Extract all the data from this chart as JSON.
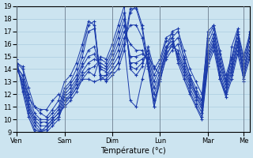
{
  "xlabel": "Température (°c)",
  "background_color": "#cce4f0",
  "grid_color": "#aacce0",
  "line_color": "#1a3aaa",
  "ylim": [
    9,
    19
  ],
  "yticks": [
    9,
    10,
    11,
    12,
    13,
    14,
    15,
    16,
    17,
    18,
    19
  ],
  "day_labels": [
    "Ven",
    "Sam",
    "Dim",
    "Lun",
    "Mar",
    "Me"
  ],
  "day_x": [
    0,
    8,
    16,
    24,
    32,
    38
  ],
  "n_points": 40,
  "series": [
    [
      14.5,
      14.2,
      12.5,
      11.0,
      10.5,
      10.2,
      10.8,
      11.5,
      13.0,
      13.5,
      14.5,
      16.0,
      17.8,
      17.5,
      13.5,
      13.0,
      13.5,
      14.0,
      15.5,
      18.5,
      19.0,
      17.5,
      14.5,
      11.0,
      13.5,
      15.5,
      16.5,
      17.0,
      15.5,
      14.0,
      13.0,
      12.0,
      16.5,
      17.5,
      15.5,
      13.5,
      15.0,
      17.0,
      15.0,
      16.8
    ],
    [
      14.5,
      14.0,
      12.0,
      10.5,
      10.0,
      10.0,
      10.5,
      11.0,
      12.5,
      13.0,
      14.0,
      15.5,
      17.5,
      17.8,
      13.2,
      13.2,
      13.8,
      14.5,
      16.0,
      18.8,
      18.8,
      17.2,
      14.0,
      11.0,
      13.0,
      15.0,
      16.0,
      16.5,
      15.0,
      13.5,
      12.5,
      11.5,
      16.0,
      17.2,
      15.2,
      13.2,
      14.8,
      16.8,
      14.8,
      16.5
    ],
    [
      14.2,
      13.5,
      11.5,
      10.2,
      9.8,
      9.8,
      10.2,
      10.8,
      12.2,
      12.8,
      13.5,
      15.0,
      17.0,
      17.2,
      13.5,
      13.5,
      14.2,
      15.0,
      16.5,
      17.5,
      17.5,
      16.5,
      14.2,
      11.5,
      13.2,
      14.8,
      15.5,
      16.0,
      14.5,
      13.2,
      12.2,
      11.2,
      15.5,
      16.8,
      14.8,
      13.0,
      14.5,
      16.5,
      14.5,
      16.2
    ],
    [
      14.0,
      13.2,
      11.2,
      10.0,
      9.5,
      9.5,
      10.0,
      10.5,
      12.0,
      12.5,
      13.2,
      14.5,
      15.5,
      15.8,
      14.0,
      13.8,
      14.5,
      15.5,
      17.0,
      16.0,
      15.5,
      15.5,
      14.5,
      12.0,
      13.5,
      15.2,
      15.8,
      15.5,
      14.2,
      13.0,
      12.0,
      11.0,
      15.2,
      16.5,
      14.5,
      12.8,
      14.2,
      16.2,
      14.2,
      15.8
    ],
    [
      14.0,
      13.0,
      11.0,
      9.8,
      9.2,
      9.2,
      9.8,
      10.2,
      11.8,
      12.2,
      13.0,
      14.2,
      15.0,
      15.2,
      14.2,
      14.0,
      14.8,
      16.0,
      17.5,
      15.0,
      15.0,
      15.2,
      14.8,
      12.5,
      13.8,
      15.5,
      16.0,
      15.2,
      14.0,
      12.8,
      11.8,
      10.8,
      15.0,
      16.2,
      14.2,
      12.5,
      14.0,
      16.0,
      14.0,
      15.5
    ],
    [
      14.2,
      12.8,
      10.8,
      9.5,
      9.0,
      9.0,
      9.5,
      10.0,
      11.5,
      12.0,
      12.8,
      13.8,
      14.5,
      14.8,
      14.5,
      14.2,
      15.2,
      16.5,
      18.0,
      14.5,
      14.5,
      14.8,
      15.2,
      13.0,
      14.2,
      15.8,
      16.2,
      15.0,
      13.8,
      12.5,
      11.5,
      10.5,
      14.8,
      16.0,
      13.8,
      12.2,
      13.8,
      15.8,
      13.8,
      15.2
    ],
    [
      14.5,
      12.5,
      10.5,
      9.2,
      9.0,
      9.2,
      9.8,
      10.2,
      11.2,
      11.8,
      12.5,
      13.5,
      14.0,
      14.2,
      14.8,
      14.5,
      15.5,
      17.0,
      18.5,
      14.2,
      14.0,
      14.5,
      15.5,
      13.5,
      14.5,
      16.2,
      16.5,
      14.8,
      13.5,
      12.2,
      11.2,
      10.2,
      14.5,
      15.8,
      13.5,
      12.0,
      13.5,
      15.5,
      13.5,
      15.0
    ],
    [
      14.8,
      12.2,
      10.2,
      9.0,
      9.0,
      9.5,
      10.0,
      10.5,
      11.0,
      11.5,
      12.2,
      13.2,
      13.8,
      13.5,
      15.0,
      14.8,
      16.0,
      17.5,
      19.0,
      14.0,
      13.5,
      14.2,
      15.8,
      14.0,
      14.8,
      16.5,
      16.8,
      14.5,
      13.2,
      12.0,
      11.0,
      10.0,
      14.2,
      15.5,
      13.2,
      11.8,
      13.2,
      15.2,
      13.2,
      14.8
    ],
    [
      14.2,
      13.5,
      11.8,
      11.0,
      10.8,
      10.8,
      11.5,
      12.0,
      11.5,
      11.8,
      12.5,
      13.2,
      13.2,
      13.0,
      13.2,
      13.5,
      13.8,
      14.5,
      16.0,
      11.5,
      11.0,
      13.2,
      15.0,
      14.2,
      13.5,
      15.5,
      17.0,
      17.2,
      14.8,
      13.5,
      12.0,
      11.5,
      17.0,
      17.5,
      13.2,
      12.0,
      15.8,
      17.2,
      13.0,
      17.0
    ]
  ]
}
